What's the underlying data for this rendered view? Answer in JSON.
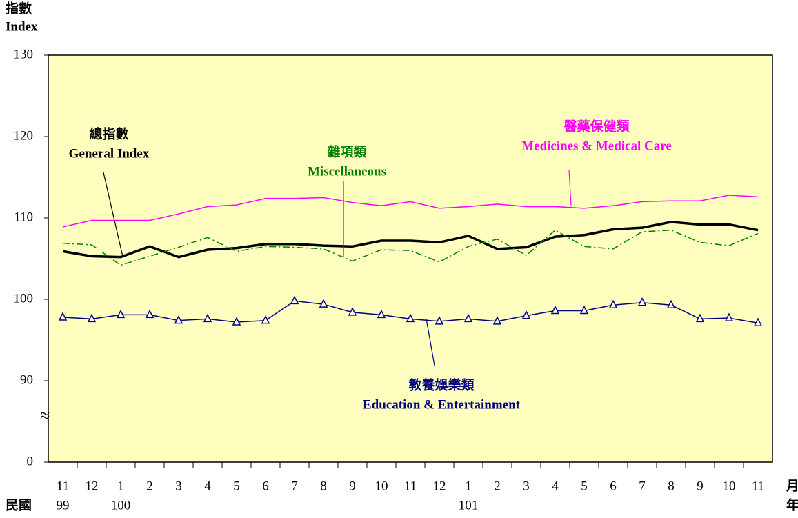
{
  "chart_data": {
    "type": "line",
    "y_label_zh": "指數",
    "y_label_en": "Index",
    "x_label_left": "民國",
    "x_label_month": "月",
    "x_label_year": "年",
    "categories": [
      "11",
      "12",
      "1",
      "2",
      "3",
      "4",
      "5",
      "6",
      "7",
      "8",
      "9",
      "10",
      "11",
      "12",
      "1",
      "2",
      "3",
      "4",
      "5",
      "6",
      "7",
      "8",
      "9",
      "10",
      "11"
    ],
    "years": [
      "99",
      null,
      "100",
      null,
      null,
      null,
      null,
      null,
      null,
      null,
      null,
      null,
      null,
      null,
      "101",
      null,
      null,
      null,
      null,
      null,
      null,
      null,
      null,
      null,
      null
    ],
    "ylim": [
      80,
      130
    ],
    "yticks": [
      0,
      90,
      100,
      110,
      120,
      130
    ],
    "axis_break": true,
    "background": "#ffffc0",
    "series": [
      {
        "name": "總指數",
        "name_en": "General Index",
        "color": "#000000",
        "style": "thick",
        "values": [
          105.9,
          105.3,
          105.2,
          106.5,
          105.2,
          106.1,
          106.3,
          106.8,
          106.8,
          106.6,
          106.5,
          107.2,
          107.2,
          107.0,
          107.8,
          106.2,
          106.4,
          107.7,
          107.9,
          108.6,
          108.8,
          109.5,
          109.2,
          109.2,
          108.5
        ]
      },
      {
        "name": "醫藥保健類",
        "name_en": "Medicines & Medical Care",
        "color": "#ff00ff",
        "style": "solid",
        "values": [
          108.9,
          109.7,
          109.7,
          109.7,
          110.5,
          111.4,
          111.6,
          112.4,
          112.4,
          112.5,
          111.9,
          111.5,
          112.0,
          111.2,
          111.4,
          111.7,
          111.4,
          111.4,
          111.2,
          111.5,
          112.0,
          112.1,
          112.1,
          112.8,
          112.6
        ]
      },
      {
        "name": "雜項類",
        "name_en": "Miscellaneous",
        "color": "#008000",
        "style": "dashdot",
        "values": [
          106.9,
          106.7,
          104.2,
          105.3,
          106.4,
          107.6,
          105.9,
          106.5,
          106.4,
          106.2,
          104.7,
          106.1,
          106.0,
          104.6,
          106.5,
          107.4,
          105.4,
          108.5,
          106.5,
          106.2,
          108.3,
          108.5,
          107.0,
          106.6,
          108.1
        ]
      },
      {
        "name": "教養娛樂類",
        "name_en": "Education & Entertainment",
        "color": "#000080",
        "style": "triangle",
        "values": [
          97.8,
          97.6,
          98.1,
          98.1,
          97.4,
          97.6,
          97.2,
          97.4,
          99.8,
          99.4,
          98.4,
          98.1,
          97.6,
          97.3,
          97.6,
          97.3,
          98.0,
          98.6,
          98.6,
          99.3,
          99.6,
          99.3,
          97.6,
          97.7,
          97.1
        ]
      }
    ]
  }
}
